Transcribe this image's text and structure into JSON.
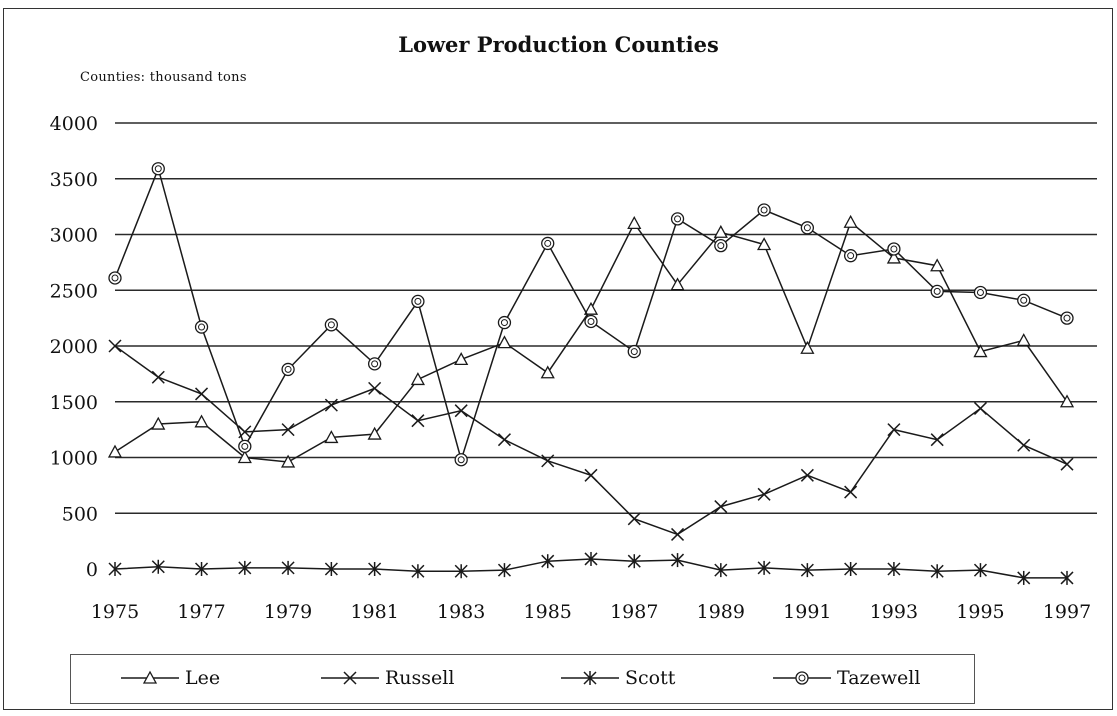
{
  "chart_data": {
    "type": "line",
    "title": "Lower Production Counties",
    "y_unit_label": "Counties: thousand tons",
    "xlabel": "",
    "ylabel": "",
    "ylim": [
      0,
      4000
    ],
    "yticks": [
      0,
      500,
      1000,
      1500,
      2000,
      2500,
      3000,
      3500,
      4000
    ],
    "xlim": [
      1975,
      1997
    ],
    "xticks": [
      1975,
      1977,
      1979,
      1981,
      1983,
      1985,
      1987,
      1989,
      1991,
      1993,
      1995,
      1997
    ],
    "grid": "horizontal",
    "legend_position": "bottom",
    "x": [
      1975,
      1976,
      1977,
      1978,
      1979,
      1980,
      1981,
      1982,
      1983,
      1984,
      1985,
      1986,
      1987,
      1988,
      1989,
      1990,
      1991,
      1992,
      1993,
      1994,
      1995,
      1996,
      1997
    ],
    "series": [
      {
        "name": "Lee",
        "marker": "triangle",
        "values": [
          1050,
          1300,
          1320,
          1000,
          960,
          1180,
          1210,
          1700,
          1880,
          2030,
          1760,
          2330,
          3100,
          2550,
          3020,
          2910,
          1980,
          3110,
          2790,
          2720,
          1950,
          2050,
          1500
        ]
      },
      {
        "name": "Russell",
        "marker": "x",
        "values": [
          2000,
          1720,
          1570,
          1230,
          1250,
          1470,
          1620,
          1330,
          1420,
          1160,
          970,
          840,
          450,
          310,
          560,
          670,
          840,
          690,
          1250,
          1160,
          1440,
          1110,
          940
        ]
      },
      {
        "name": "Scott",
        "marker": "star",
        "values": [
          0,
          20,
          0,
          10,
          10,
          0,
          0,
          -20,
          -20,
          -10,
          70,
          90,
          70,
          80,
          -10,
          10,
          -10,
          0,
          0,
          -20,
          -10,
          -80,
          -80
        ]
      },
      {
        "name": "Tazewell",
        "marker": "circle",
        "values": [
          2610,
          3590,
          2170,
          1100,
          1790,
          2190,
          1840,
          2400,
          980,
          2210,
          2920,
          2220,
          1950,
          3140,
          2900,
          3220,
          3060,
          2810,
          2870,
          2490,
          2480,
          2410,
          2250
        ]
      }
    ]
  },
  "colors": {
    "line": "#1a1a1a",
    "grid": "#2a2a2a",
    "background": "#ffffff"
  }
}
